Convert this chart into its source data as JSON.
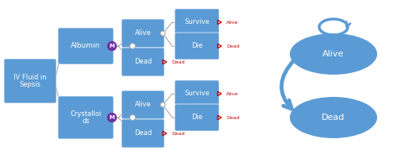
{
  "bg_color": "#ffffff",
  "box_color": "#5B9BD5",
  "box_text_color": "white",
  "line_color": "#A6A6A6",
  "markov_circle_color": "#7030A0",
  "markov_text_color": "white",
  "arrow_color": "#5B9BD5",
  "red_arrow_color": "#C00000",
  "red_text_color": "#C00000",
  "ellipse_color": "#5B9BD5",
  "ellipse_text_color": "white",
  "root_label": "IV Fluid in\nSepsis",
  "arm1_label": "Albumin",
  "arm2_label": "Crystalloi\nds",
  "alive_label": "Alive",
  "dead_label": "Dead",
  "survive_label": "Survive",
  "die_label": "Die",
  "markov_label": "M",
  "alive_state": "Alive",
  "dead_state": "Dead",
  "small_label_alive": "Alive",
  "small_label_dead": "Dead"
}
